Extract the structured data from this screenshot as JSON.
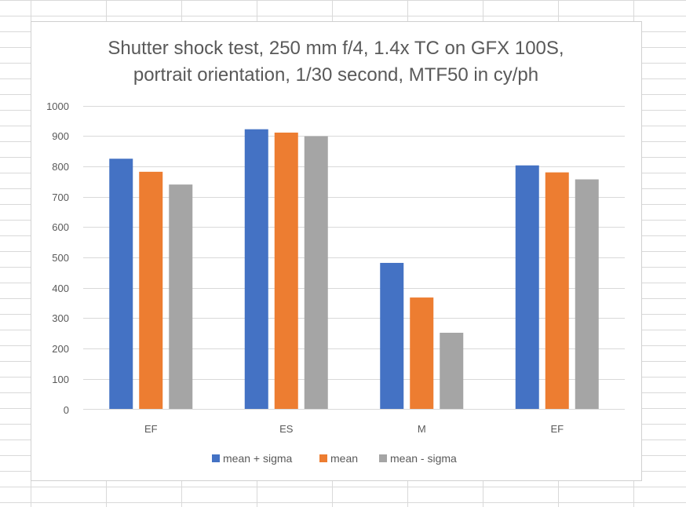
{
  "chart_data": {
    "type": "bar",
    "title_lines": [
      "Shutter shock test, 250 mm f/4, 1.4x TC on GFX 100S,",
      "portrait orientation, 1/30 second, MTF50 in cy/ph"
    ],
    "categories": [
      "EF",
      "ES",
      "M",
      "EF"
    ],
    "series": [
      {
        "name": "mean + sigma",
        "color": "#4472c4",
        "values": [
          825,
          922,
          482,
          803
        ]
      },
      {
        "name": "mean",
        "color": "#ed7d31",
        "values": [
          782,
          911,
          368,
          780
        ]
      },
      {
        "name": "mean - sigma",
        "color": "#a5a5a5",
        "values": [
          740,
          899,
          252,
          757
        ]
      }
    ],
    "ylim": [
      0,
      1000
    ],
    "y_ticks": [
      0,
      100,
      200,
      300,
      400,
      500,
      600,
      700,
      800,
      900,
      1000
    ],
    "grid": true,
    "gridline_color": "#d9d9d9",
    "legend_position": "bottom",
    "xlabel": "",
    "ylabel": ""
  }
}
